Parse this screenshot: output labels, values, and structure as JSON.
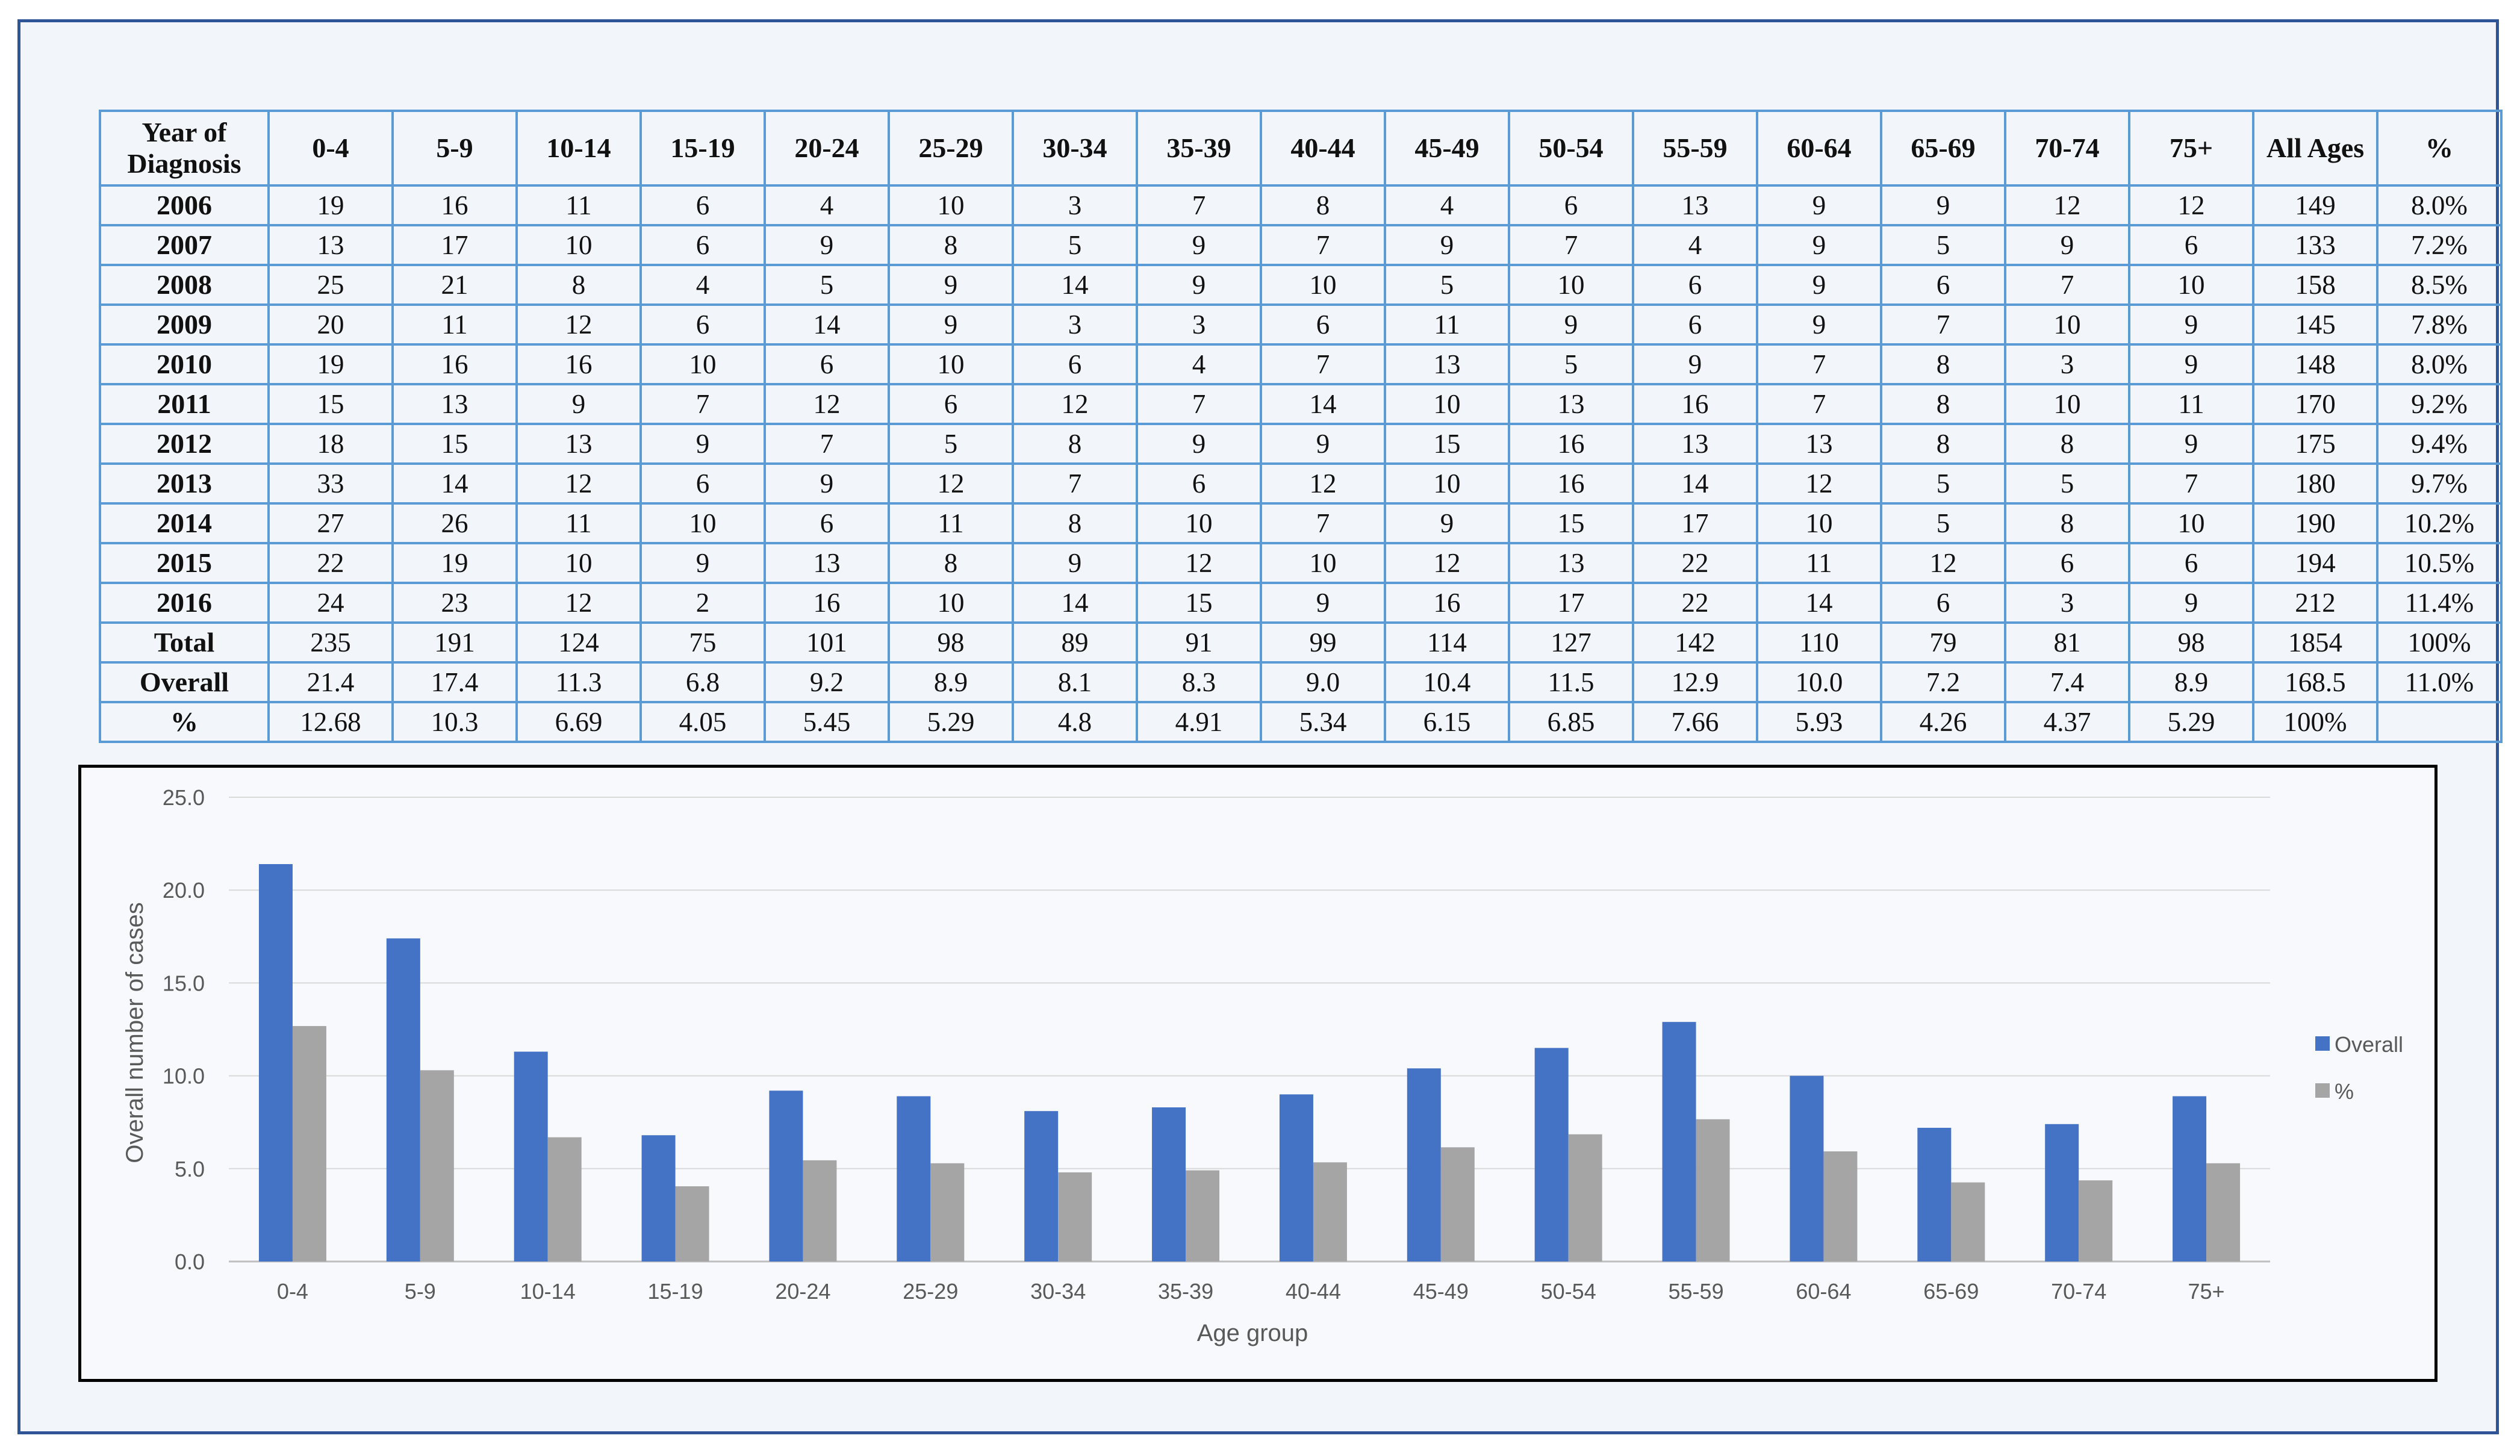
{
  "table": {
    "headers": [
      "Year of Diagnosis",
      "0-4",
      "5-9",
      "10-14",
      "15-19",
      "20-24",
      "25-29",
      "30-34",
      "35-39",
      "40-44",
      "45-49",
      "50-54",
      "55-59",
      "60-64",
      "65-69",
      "70-74",
      "75+",
      "All Ages",
      "%"
    ],
    "rows": [
      [
        "2006",
        "19",
        "16",
        "11",
        "6",
        "4",
        "10",
        "3",
        "7",
        "8",
        "4",
        "6",
        "13",
        "9",
        "9",
        "12",
        "12",
        "149",
        "8.0%"
      ],
      [
        "2007",
        "13",
        "17",
        "10",
        "6",
        "9",
        "8",
        "5",
        "9",
        "7",
        "9",
        "7",
        "4",
        "9",
        "5",
        "9",
        "6",
        "133",
        "7.2%"
      ],
      [
        "2008",
        "25",
        "21",
        "8",
        "4",
        "5",
        "9",
        "14",
        "9",
        "10",
        "5",
        "10",
        "6",
        "9",
        "6",
        "7",
        "10",
        "158",
        "8.5%"
      ],
      [
        "2009",
        "20",
        "11",
        "12",
        "6",
        "14",
        "9",
        "3",
        "3",
        "6",
        "11",
        "9",
        "6",
        "9",
        "7",
        "10",
        "9",
        "145",
        "7.8%"
      ],
      [
        "2010",
        "19",
        "16",
        "16",
        "10",
        "6",
        "10",
        "6",
        "4",
        "7",
        "13",
        "5",
        "9",
        "7",
        "8",
        "3",
        "9",
        "148",
        "8.0%"
      ],
      [
        "2011",
        "15",
        "13",
        "9",
        "7",
        "12",
        "6",
        "12",
        "7",
        "14",
        "10",
        "13",
        "16",
        "7",
        "8",
        "10",
        "11",
        "170",
        "9.2%"
      ],
      [
        "2012",
        "18",
        "15",
        "13",
        "9",
        "7",
        "5",
        "8",
        "9",
        "9",
        "15",
        "16",
        "13",
        "13",
        "8",
        "8",
        "9",
        "175",
        "9.4%"
      ],
      [
        "2013",
        "33",
        "14",
        "12",
        "6",
        "9",
        "12",
        "7",
        "6",
        "12",
        "10",
        "16",
        "14",
        "12",
        "5",
        "5",
        "7",
        "180",
        "9.7%"
      ],
      [
        "2014",
        "27",
        "26",
        "11",
        "10",
        "6",
        "11",
        "8",
        "10",
        "7",
        "9",
        "15",
        "17",
        "10",
        "5",
        "8",
        "10",
        "190",
        "10.2%"
      ],
      [
        "2015",
        "22",
        "19",
        "10",
        "9",
        "13",
        "8",
        "9",
        "12",
        "10",
        "12",
        "13",
        "22",
        "11",
        "12",
        "6",
        "6",
        "194",
        "10.5%"
      ],
      [
        "2016",
        "24",
        "23",
        "12",
        "2",
        "16",
        "10",
        "14",
        "15",
        "9",
        "16",
        "17",
        "22",
        "14",
        "6",
        "3",
        "9",
        "212",
        "11.4%"
      ],
      [
        "Total",
        "235",
        "191",
        "124",
        "75",
        "101",
        "98",
        "89",
        "91",
        "99",
        "114",
        "127",
        "142",
        "110",
        "79",
        "81",
        "98",
        "1854",
        "100%"
      ],
      [
        "Overall",
        "21.4",
        "17.4",
        "11.3",
        "6.8",
        "9.2",
        "8.9",
        "8.1",
        "8.3",
        "9.0",
        "10.4",
        "11.5",
        "12.9",
        "10.0",
        "7.2",
        "7.4",
        "8.9",
        "168.5",
        "11.0%"
      ],
      [
        "%",
        "12.68",
        "10.3",
        "6.69",
        "4.05",
        "5.45",
        "5.29",
        "4.8",
        "4.91",
        "5.34",
        "6.15",
        "6.85",
        "7.66",
        "5.93",
        "4.26",
        "4.37",
        "5.29",
        "100%",
        ""
      ]
    ]
  },
  "chart_data": {
    "type": "bar",
    "categories": [
      "0-4",
      "5-9",
      "10-14",
      "15-19",
      "20-24",
      "25-29",
      "30-34",
      "35-39",
      "40-44",
      "45-49",
      "50-54",
      "55-59",
      "60-64",
      "65-69",
      "70-74",
      "75+"
    ],
    "series": [
      {
        "name": "Overall",
        "color": "#4472c4",
        "values": [
          21.4,
          17.4,
          11.3,
          6.8,
          9.2,
          8.9,
          8.1,
          8.3,
          9.0,
          10.4,
          11.5,
          12.9,
          10.0,
          7.2,
          7.4,
          8.9
        ]
      },
      {
        "name": "%",
        "color": "#a5a5a5",
        "values": [
          12.68,
          10.3,
          6.69,
          4.05,
          5.45,
          5.29,
          4.8,
          4.91,
          5.34,
          6.15,
          6.85,
          7.66,
          5.93,
          4.26,
          4.37,
          5.29
        ]
      }
    ],
    "title": "",
    "xlabel": "Age group",
    "ylabel": "Overall number of cases",
    "ylim": [
      0,
      25
    ],
    "yticks": [
      "0.0",
      "5.0",
      "10.0",
      "15.0",
      "20.0",
      "25.0"
    ],
    "ytick_values": [
      0,
      5,
      10,
      15,
      20,
      25
    ],
    "grid": true,
    "legend_position": "right",
    "gridline_color": "#d9d9d9",
    "axis_color": "#bfbfbf"
  }
}
